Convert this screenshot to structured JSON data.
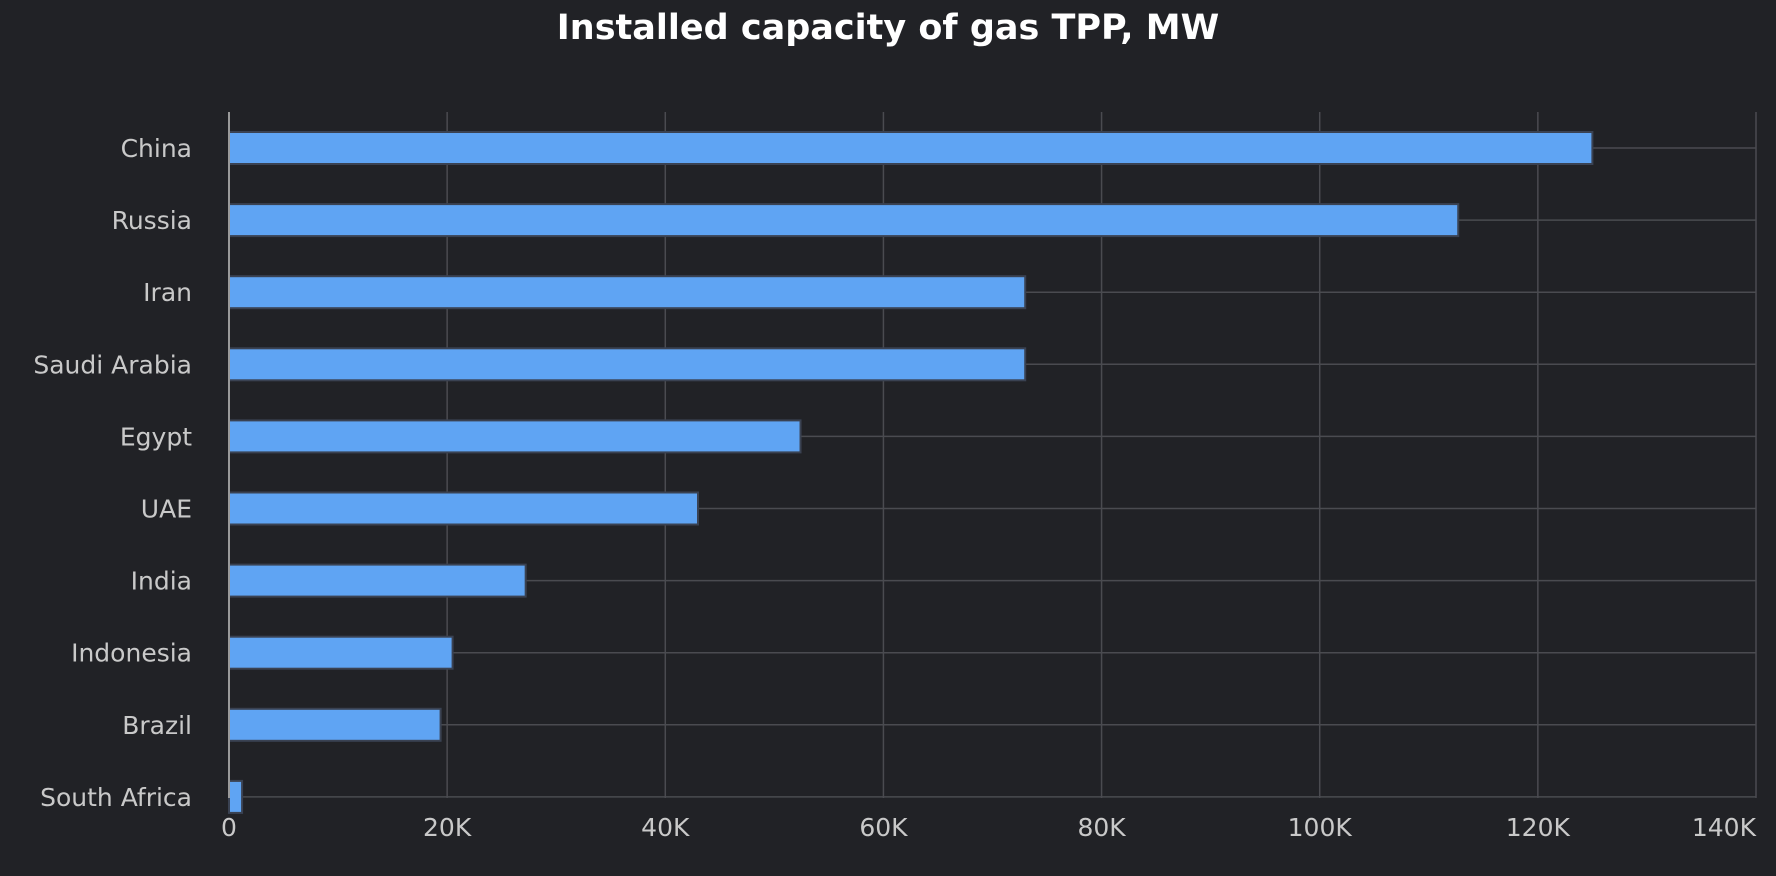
{
  "chart_data": {
    "type": "bar",
    "orientation": "horizontal",
    "title": "Installed capacity of gas TPP, MW",
    "xlabel": "",
    "ylabel": "",
    "categories": [
      "China",
      "Russia",
      "Iran",
      "Saudi Arabia",
      "Egypt",
      "UAE",
      "India",
      "Indonesia",
      "Brazil",
      "South Africa"
    ],
    "values": [
      125000,
      112700,
      73000,
      73000,
      52400,
      43000,
      27200,
      20500,
      19400,
      1200
    ],
    "xlim": [
      0,
      140000
    ],
    "xticks": [
      0,
      20000,
      40000,
      60000,
      80000,
      100000,
      120000,
      140000
    ],
    "xtick_labels": [
      "0",
      "20K",
      "40K",
      "60K",
      "80K",
      "100K",
      "120K",
      "140K"
    ],
    "grid": true,
    "legend": "none",
    "colors": {
      "background": "#212226",
      "bar_fill": "#5fa4f3",
      "bar_stroke": "#3a4252",
      "grid": "#4a4b50",
      "axis": "#9a9a9a",
      "text": "#c9c9c9",
      "title": "#ffffff"
    }
  }
}
